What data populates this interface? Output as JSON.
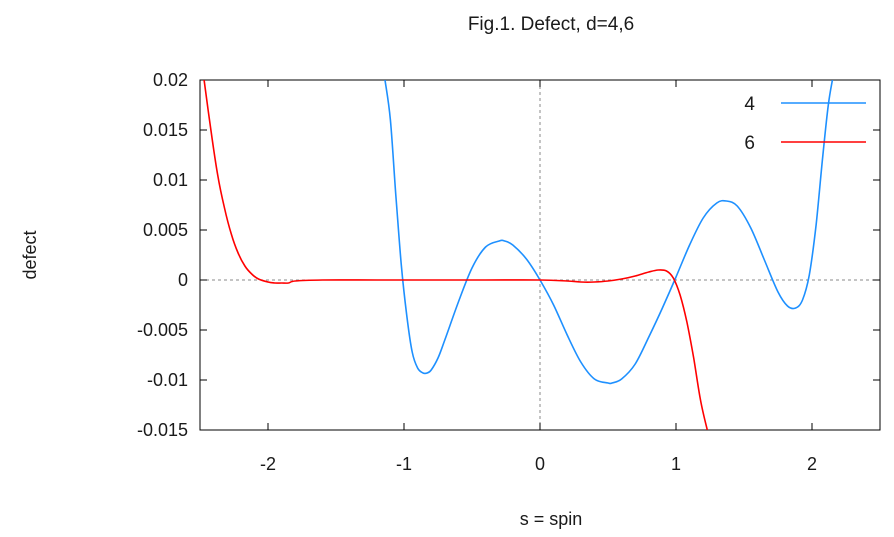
{
  "chart_data": {
    "type": "line",
    "title": "Fig.1. Defect, d=4,6",
    "xlabel": "s = spin",
    "ylabel": "defect",
    "xlim": [
      -2.5,
      2.5
    ],
    "ylim": [
      -0.015,
      0.02
    ],
    "x_ticks": [
      -2,
      -1,
      0,
      1,
      2
    ],
    "x_tick_labels": [
      "-2",
      "-1",
      "0",
      "1",
      "2"
    ],
    "y_ticks": [
      0.02,
      0.015,
      0.01,
      0.005,
      0,
      -0.005,
      -0.01,
      -0.015
    ],
    "y_tick_labels": [
      "0.02",
      "0.015",
      "0.01",
      "0.005",
      "0",
      "-0.005",
      "-0.01",
      "-0.015"
    ],
    "grid": false,
    "zero_axes": "dotted",
    "legend_position": "top-right",
    "series": [
      {
        "name": "4",
        "color": "#1e90ff",
        "x": [
          -1.14,
          -1.1,
          -1.06,
          -1.02,
          -0.98,
          -0.94,
          -0.9,
          -0.86,
          -0.83,
          -0.8,
          -0.75,
          -0.7,
          -0.6,
          -0.5,
          -0.4,
          -0.3,
          -0.26,
          -0.2,
          -0.1,
          0.0,
          0.1,
          0.2,
          0.3,
          0.4,
          0.5,
          0.53,
          0.6,
          0.7,
          0.8,
          0.9,
          1.0,
          1.1,
          1.2,
          1.3,
          1.37,
          1.45,
          1.55,
          1.65,
          1.75,
          1.82,
          1.88,
          1.93,
          1.98,
          2.03,
          2.08,
          2.12,
          2.15
        ],
        "y": [
          0.02,
          0.016,
          0.0085,
          0.0015,
          -0.0035,
          -0.0072,
          -0.0088,
          -0.0093,
          -0.0093,
          -0.009,
          -0.0078,
          -0.006,
          -0.0022,
          0.0012,
          0.0033,
          0.0039,
          0.0039,
          0.0035,
          0.0021,
          0.0,
          -0.0025,
          -0.0055,
          -0.0082,
          -0.0099,
          -0.0103,
          -0.0103,
          -0.0099,
          -0.0084,
          -0.0057,
          -0.0028,
          0.0003,
          0.0035,
          0.0062,
          0.0077,
          0.0079,
          0.0074,
          0.0052,
          0.002,
          -0.0012,
          -0.0026,
          -0.0028,
          -0.002,
          0.0005,
          0.0055,
          0.0125,
          0.0175,
          0.02
        ]
      },
      {
        "name": "6",
        "color": "#ff0000",
        "x": [
          -2.47,
          -2.42,
          -2.37,
          -2.32,
          -2.27,
          -2.22,
          -2.17,
          -2.12,
          -2.07,
          -2.0,
          -1.95,
          -1.9,
          -1.85,
          -1.8,
          -1.6,
          -1.2,
          -0.8,
          -0.4,
          0.0,
          0.2,
          0.3,
          0.4,
          0.5,
          0.6,
          0.7,
          0.8,
          0.87,
          0.93,
          0.98,
          1.03,
          1.08,
          1.13,
          1.18,
          1.23
        ],
        "y": [
          0.02,
          0.015,
          0.0105,
          0.0072,
          0.0046,
          0.0027,
          0.0014,
          0.0006,
          0.0001,
          -0.0002,
          -0.0003,
          -0.0003,
          -0.0003,
          -0.0001,
          0.0,
          0.0,
          0.0,
          0.0,
          0.0,
          -0.0001,
          -0.0002,
          -0.0002,
          -0.0001,
          0.0001,
          0.0004,
          0.0008,
          0.001,
          0.0009,
          0.0002,
          -0.0015,
          -0.0042,
          -0.0078,
          -0.012,
          -0.015
        ]
      }
    ]
  }
}
